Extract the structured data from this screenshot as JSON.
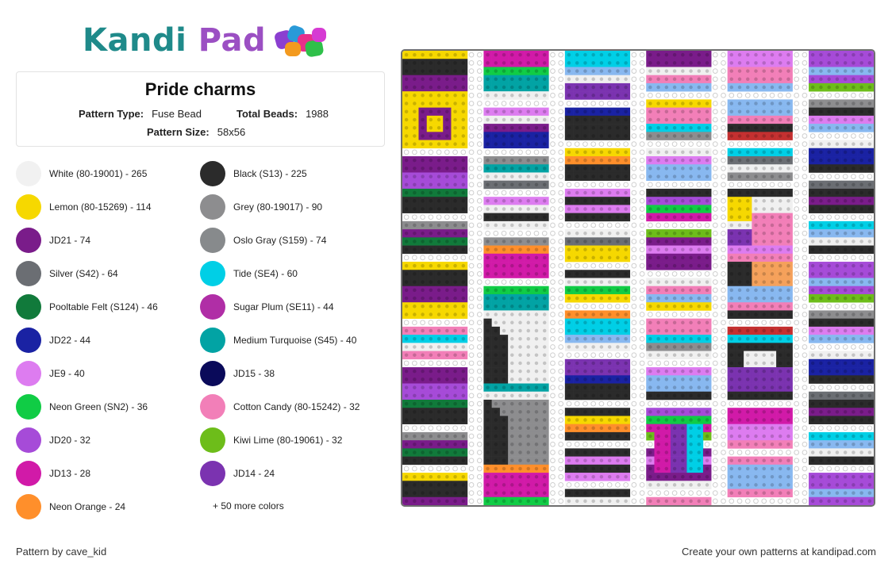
{
  "logo": {
    "part1": "Kandi",
    "part2": "Pad"
  },
  "pattern": {
    "title": "Pride charms",
    "type_label": "Pattern Type:",
    "type_value": "Fuse Bead",
    "beads_label": "Total Beads:",
    "beads_value": "1988",
    "size_label": "Pattern Size:",
    "size_value": "58x56"
  },
  "legend": [
    {
      "label": "White (80-19001) - 265",
      "color": "#f1f1f1"
    },
    {
      "label": "Black (S13) - 225",
      "color": "#2b2b2b"
    },
    {
      "label": "Lemon (80-15269) - 114",
      "color": "#f6d800"
    },
    {
      "label": "Grey (80-19017) - 90",
      "color": "#8d8d8f"
    },
    {
      "label": "JD21 - 74",
      "color": "#7a1c8a"
    },
    {
      "label": "Oslo Gray (S159) - 74",
      "color": "#878a8c"
    },
    {
      "label": "Silver (S42) - 64",
      "color": "#6b6e73"
    },
    {
      "label": "Tide (SE4) - 60",
      "color": "#00cfe6"
    },
    {
      "label": "Pooltable Felt (S124) - 46",
      "color": "#117a3b"
    },
    {
      "label": "Sugar Plum (SE11) - 44",
      "color": "#b02ea6"
    },
    {
      "label": "JD22 - 44",
      "color": "#1a22a3"
    },
    {
      "label": "Medium Turquoise (S45) - 40",
      "color": "#02a3a4"
    },
    {
      "label": "JE9 - 40",
      "color": "#dd7cf0"
    },
    {
      "label": "JD15 - 38",
      "color": "#0a0a5a"
    },
    {
      "label": "Neon Green (SN2) - 36",
      "color": "#10cc45"
    },
    {
      "label": "Cotton Candy (80-15242) - 32",
      "color": "#f27fb8"
    },
    {
      "label": "JD20 - 32",
      "color": "#a64bd8"
    },
    {
      "label": "Kiwi Lime (80-19061) - 32",
      "color": "#6dbd1a"
    },
    {
      "label": "JD13 - 28",
      "color": "#d11aa8"
    },
    {
      "label": "JD14 - 24",
      "color": "#7b33b0"
    },
    {
      "label": "Neon Orange - 24",
      "color": "#ff8f2b"
    }
  ],
  "more_colors": "+ 50 more colors",
  "footer": {
    "credit": "Pattern by cave_kid",
    "cta": "Create your own patterns at kandipad.com"
  },
  "board": {
    "background": "#ffffff",
    "empty_peg": "#cfcfcf"
  }
}
